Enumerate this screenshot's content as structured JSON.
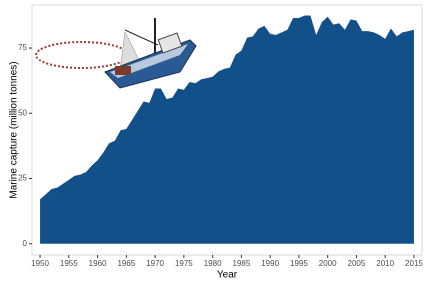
{
  "chart_data": {
    "type": "area",
    "x_label": "Year",
    "y_label": "Marine capture (million tonnes)",
    "x": [
      1950,
      1951,
      1952,
      1953,
      1954,
      1955,
      1956,
      1957,
      1958,
      1959,
      1960,
      1961,
      1962,
      1963,
      1964,
      1965,
      1966,
      1967,
      1968,
      1969,
      1970,
      1971,
      1972,
      1973,
      1974,
      1975,
      1976,
      1977,
      1978,
      1979,
      1980,
      1981,
      1982,
      1983,
      1984,
      1985,
      1986,
      1987,
      1988,
      1989,
      1990,
      1991,
      1992,
      1993,
      1994,
      1995,
      1996,
      1997,
      1998,
      1999,
      2000,
      2001,
      2002,
      2003,
      2004,
      2005,
      2006,
      2007,
      2008,
      2009,
      2010,
      2011,
      2012,
      2013,
      2014,
      2015
    ],
    "values": [
      17,
      19,
      21,
      21.5,
      23,
      24.5,
      26,
      26.5,
      27.5,
      30,
      32,
      35,
      38.5,
      39.5,
      43.5,
      44,
      47.5,
      51,
      54.5,
      54,
      59.5,
      59.5,
      55.5,
      56,
      59.5,
      59,
      62,
      61.5,
      63,
      63.5,
      64,
      66,
      67,
      67.5,
      72.5,
      74,
      79,
      79.5,
      82.5,
      83.5,
      80.5,
      80,
      81,
      82,
      86.5,
      86.5,
      87.5,
      87.5,
      80,
      85,
      87,
      84,
      84.5,
      82,
      86,
      85.5,
      81.5,
      81.5,
      81,
      80,
      78.5,
      82.5,
      79.5,
      81,
      81.5,
      82
    ],
    "color": "#12508a",
    "xlim": [
      1948.6,
      2016.4
    ],
    "ylim": [
      -4.3,
      91.5
    ],
    "xticks": [
      1950,
      1955,
      1960,
      1965,
      1970,
      1975,
      1980,
      1985,
      1990,
      1995,
      2000,
      2005,
      2010,
      2015
    ],
    "yticks": [
      0,
      25,
      50,
      75
    ]
  }
}
